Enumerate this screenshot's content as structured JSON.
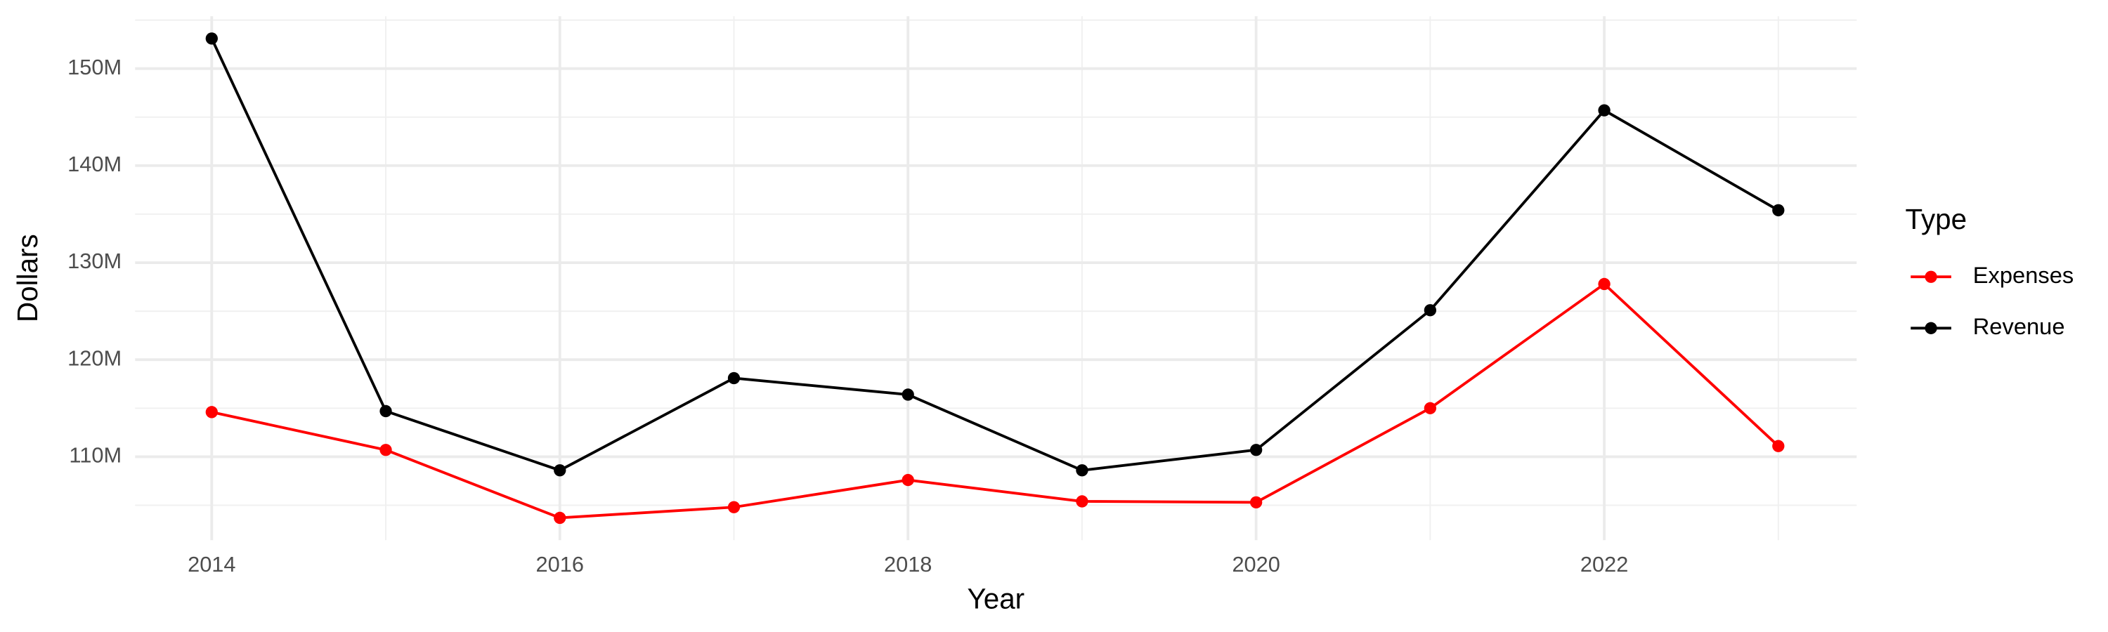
{
  "chart_data": {
    "type": "line",
    "x_label": "Year",
    "y_label": "Dollars",
    "legend_title": "Type",
    "legend_position": "right",
    "grid": true,
    "x": [
      2014,
      2015,
      2016,
      2017,
      2018,
      2019,
      2020,
      2021,
      2022,
      2023
    ],
    "series": [
      {
        "name": "Expenses",
        "color": "#ff0000",
        "values": [
          114600000,
          110700000,
          103700000,
          104800000,
          107600000,
          105400000,
          105300000,
          115000000,
          127800000,
          111100000
        ]
      },
      {
        "name": "Revenue",
        "color": "#000000",
        "values": [
          153100000,
          114700000,
          108600000,
          118100000,
          116400000,
          108600000,
          110700000,
          125100000,
          145700000,
          135400000
        ]
      }
    ],
    "xlim": [
      2013.56,
      2023.45
    ],
    "xticks": [
      2014,
      2016,
      2018,
      2020,
      2022
    ],
    "ylim": [
      101400000,
      155400000
    ],
    "yticks": [
      {
        "value": 110000000,
        "label": "110M"
      },
      {
        "value": 120000000,
        "label": "120M"
      },
      {
        "value": 130000000,
        "label": "130M"
      },
      {
        "value": 140000000,
        "label": "140M"
      },
      {
        "value": 150000000,
        "label": "150M"
      }
    ]
  }
}
